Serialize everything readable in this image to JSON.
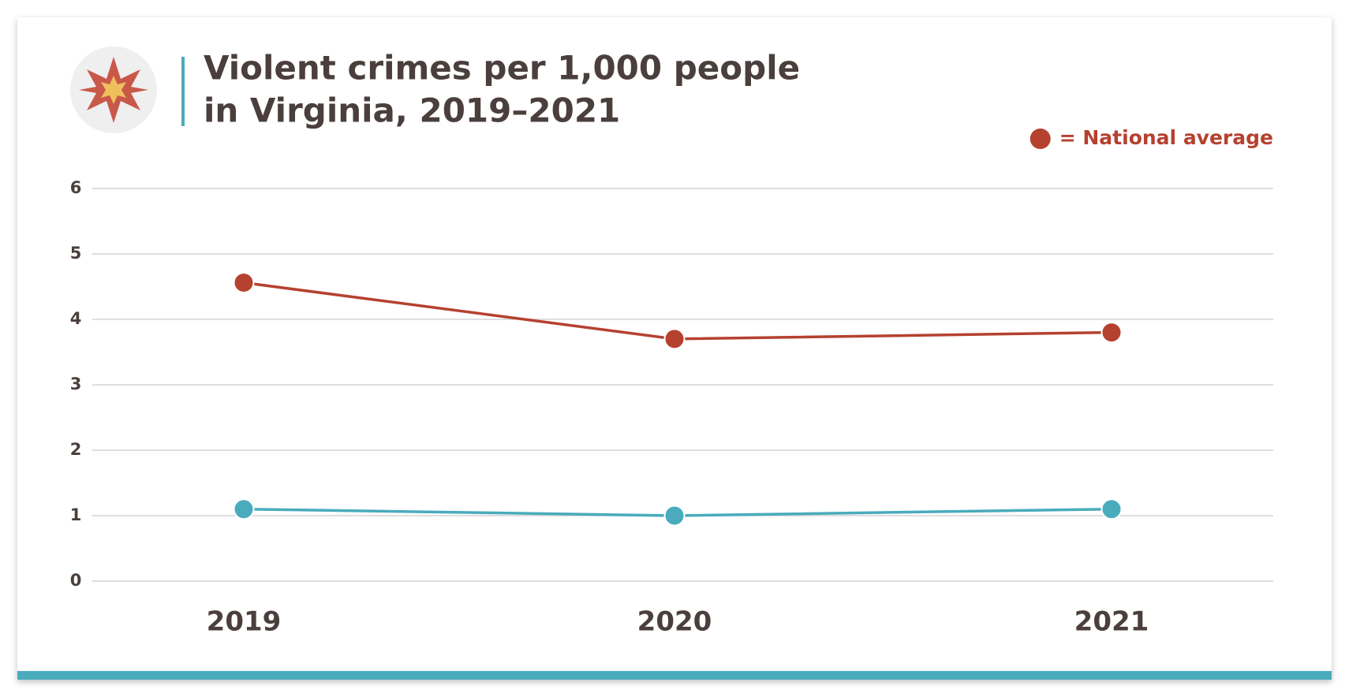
{
  "chart_data": {
    "type": "line",
    "title": [
      "Violent crimes per 1,000 people",
      "in Virginia, 2019–2021"
    ],
    "categories": [
      "2019",
      "2020",
      "2021"
    ],
    "series": [
      {
        "name": "= National average",
        "color": "#b5412f",
        "values": [
          4.56,
          3.7,
          3.8
        ]
      },
      {
        "color": "#4aabbd",
        "values": [
          1.1,
          1.0,
          1.1
        ]
      }
    ],
    "ylim": [
      0,
      6
    ],
    "yticks": [
      0,
      1,
      2,
      3,
      4,
      5,
      6
    ],
    "grid": true,
    "legend": "upper right"
  }
}
